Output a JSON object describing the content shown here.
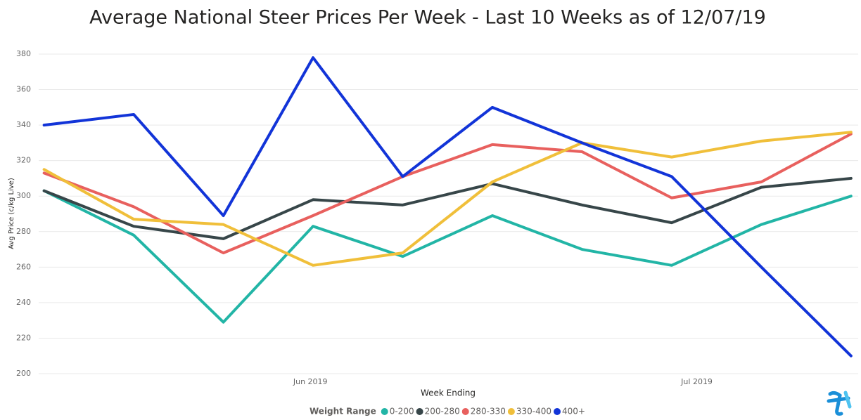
{
  "chart_data": {
    "type": "line",
    "title": "Average National Steer Prices Per Week - Last 10 Weeks as of 12/07/19",
    "x_label": "Week Ending",
    "y_label": "Avg Price (c/kg Live)",
    "legend_title": "Weight Range",
    "legend_position": "bottom",
    "grid": true,
    "x": [
      0,
      1,
      2,
      3,
      4,
      5,
      6,
      7,
      8,
      9
    ],
    "xlim": [
      -0.06,
      9.08
    ],
    "xticks": [
      {
        "value": 2.97,
        "label": "Jun 2019"
      },
      {
        "value": 7.28,
        "label": "Jul 2019"
      }
    ],
    "ylim": [
      200,
      380
    ],
    "yticks": [
      200,
      220,
      240,
      260,
      280,
      300,
      320,
      340,
      360,
      380
    ],
    "series": [
      {
        "name": "0-200",
        "color": "#22b5a6",
        "values": [
          303,
          278,
          229,
          283,
          266,
          289,
          270,
          261,
          284,
          300
        ]
      },
      {
        "name": "200-280",
        "color": "#374649",
        "values": [
          303,
          283,
          276,
          298,
          295,
          307,
          295,
          285,
          305,
          310
        ]
      },
      {
        "name": "280-330",
        "color": "#e8605e",
        "values": [
          313,
          294,
          268,
          289,
          311,
          329,
          325,
          299,
          308,
          335
        ]
      },
      {
        "name": "330-400",
        "color": "#f0bf3a",
        "values": [
          315,
          287,
          284,
          261,
          268,
          308,
          330,
          322,
          331,
          336
        ]
      },
      {
        "name": "400+",
        "color": "#1234d8",
        "values": [
          340,
          346,
          289,
          378,
          311,
          350,
          330,
          311,
          260,
          210
        ]
      }
    ]
  }
}
